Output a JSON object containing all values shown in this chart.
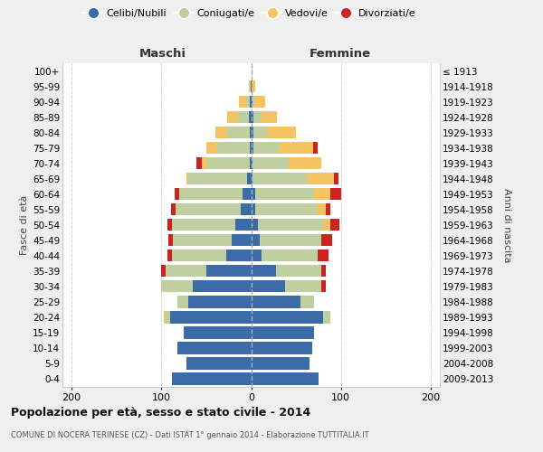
{
  "age_groups": [
    "0-4",
    "5-9",
    "10-14",
    "15-19",
    "20-24",
    "25-29",
    "30-34",
    "35-39",
    "40-44",
    "45-49",
    "50-54",
    "55-59",
    "60-64",
    "65-69",
    "70-74",
    "75-79",
    "80-84",
    "85-89",
    "90-94",
    "95-99",
    "100+"
  ],
  "birth_years": [
    "2009-2013",
    "2004-2008",
    "1999-2003",
    "1994-1998",
    "1989-1993",
    "1984-1988",
    "1979-1983",
    "1974-1978",
    "1969-1973",
    "1964-1968",
    "1959-1963",
    "1954-1958",
    "1949-1953",
    "1944-1948",
    "1939-1943",
    "1934-1938",
    "1929-1933",
    "1924-1928",
    "1919-1923",
    "1914-1918",
    "≤ 1913"
  ],
  "maschi": {
    "celibi": [
      88,
      72,
      82,
      75,
      90,
      70,
      65,
      50,
      28,
      22,
      18,
      12,
      10,
      5,
      2,
      2,
      2,
      3,
      2,
      1,
      0
    ],
    "coniugati": [
      0,
      0,
      0,
      0,
      5,
      12,
      35,
      45,
      60,
      65,
      70,
      72,
      70,
      65,
      48,
      36,
      25,
      12,
      4,
      0,
      0
    ],
    "vedovi": [
      0,
      0,
      0,
      0,
      2,
      0,
      0,
      0,
      0,
      0,
      0,
      0,
      0,
      2,
      5,
      12,
      13,
      12,
      8,
      2,
      0
    ],
    "divorziati": [
      0,
      0,
      0,
      0,
      0,
      0,
      0,
      5,
      5,
      5,
      5,
      5,
      5,
      0,
      6,
      0,
      0,
      0,
      0,
      0,
      0
    ]
  },
  "femmine": {
    "nubili": [
      75,
      65,
      68,
      70,
      80,
      55,
      38,
      28,
      12,
      10,
      8,
      5,
      5,
      2,
      2,
      3,
      3,
      3,
      2,
      0,
      0
    ],
    "coniugate": [
      0,
      0,
      0,
      0,
      8,
      15,
      40,
      50,
      62,
      68,
      72,
      68,
      65,
      60,
      40,
      28,
      15,
      8,
      2,
      0,
      0
    ],
    "vedove": [
      0,
      0,
      0,
      0,
      0,
      0,
      0,
      0,
      0,
      0,
      8,
      10,
      18,
      30,
      36,
      38,
      32,
      18,
      12,
      5,
      0
    ],
    "divorziate": [
      0,
      0,
      0,
      0,
      0,
      0,
      5,
      5,
      12,
      12,
      10,
      5,
      12,
      5,
      0,
      5,
      0,
      0,
      0,
      0,
      0
    ]
  },
  "colors": {
    "celibi_nubili": "#3B6CA8",
    "coniugati": "#BFCFA0",
    "vedovi": "#F5C462",
    "divorziati": "#CC2222"
  },
  "xlim": 210,
  "title": "Popolazione per età, sesso e stato civile - 2014",
  "subtitle": "COMUNE DI NOCERA TERINESE (CZ) - Dati ISTAT 1° gennaio 2014 - Elaborazione TUTTITALIA.IT",
  "ylabel_left": "Fasce di età",
  "ylabel_right": "Anni di nascita",
  "xlabel_left": "Maschi",
  "xlabel_right": "Femmine",
  "bg_color": "#efefef",
  "plot_bg": "#ffffff",
  "grid_color": "#cccccc"
}
